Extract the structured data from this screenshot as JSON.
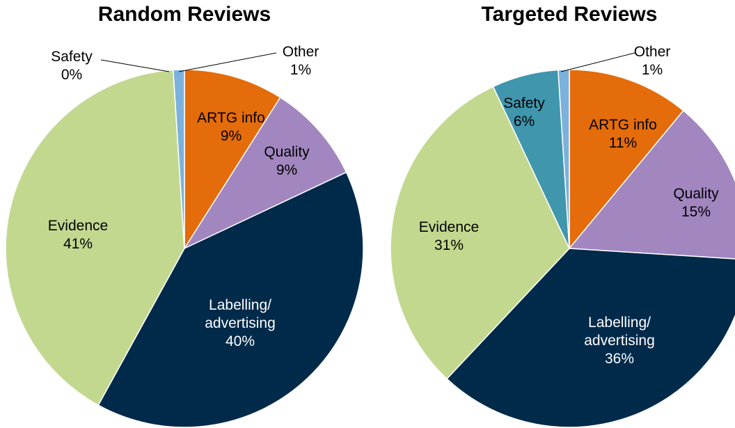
{
  "chart_data": [
    {
      "type": "pie",
      "title": "Random Reviews",
      "categories": [
        "ARTG info",
        "Quality",
        "Labelling/ advertising",
        "Evidence",
        "Safety",
        "Other"
      ],
      "values": [
        9,
        9,
        40,
        41,
        0,
        1
      ],
      "value_labels": [
        "9%",
        "9%",
        "40%",
        "41%",
        "0%",
        "1%"
      ],
      "colors": [
        "#e46c0a",
        "#a286c0",
        "#002a4a",
        "#c3d88f",
        "#3f96ad",
        "#7bb1dc"
      ]
    },
    {
      "type": "pie",
      "title": "Targeted Reviews",
      "categories": [
        "ARTG info",
        "Quality",
        "Labelling/ advertising",
        "Evidence",
        "Safety",
        "Other"
      ],
      "values": [
        11,
        15,
        36,
        31,
        6,
        1
      ],
      "value_labels": [
        "11%",
        "15%",
        "36%",
        "31%",
        "6%",
        "1%"
      ],
      "colors": [
        "#e46c0a",
        "#a286c0",
        "#002a4a",
        "#c3d88f",
        "#3f96ad",
        "#7bb1dc"
      ]
    }
  ]
}
